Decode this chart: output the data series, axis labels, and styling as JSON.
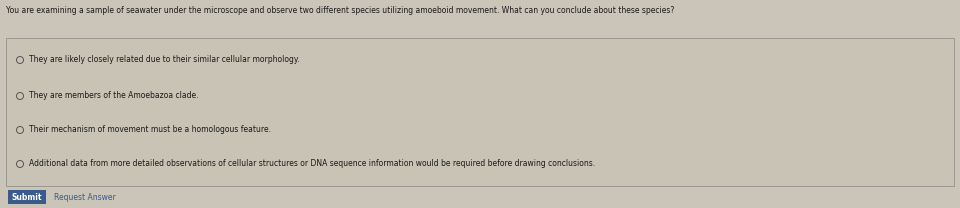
{
  "question": "You are examining a sample of seawater under the microscope and observe two different species utilizing amoeboid movement. What can you conclude about these species?",
  "options": [
    "They are likely closely related due to their similar cellular morphology.",
    "They are members of the Amoebazoa clade.",
    "Their mechanism of movement must be a homologous feature.",
    "Additional data from more detailed observations of cellular structures or DNA sequence information would be required before drawing conclusions."
  ],
  "submit_label": "Submit",
  "request_label": "Request Answer",
  "bg_color": "#cac5b8",
  "box_bg_color": "#c8c3b5",
  "box_border_color": "#999990",
  "question_color": "#1a1a1a",
  "option_color": "#1a1a1a",
  "submit_bg": "#3a5a8c",
  "submit_text_color": "#ffffff",
  "request_color": "#3a5a8c",
  "question_fontsize": 5.5,
  "option_fontsize": 5.5,
  "radio_color": "#555555",
  "radio_fill": "#c8c3b5"
}
